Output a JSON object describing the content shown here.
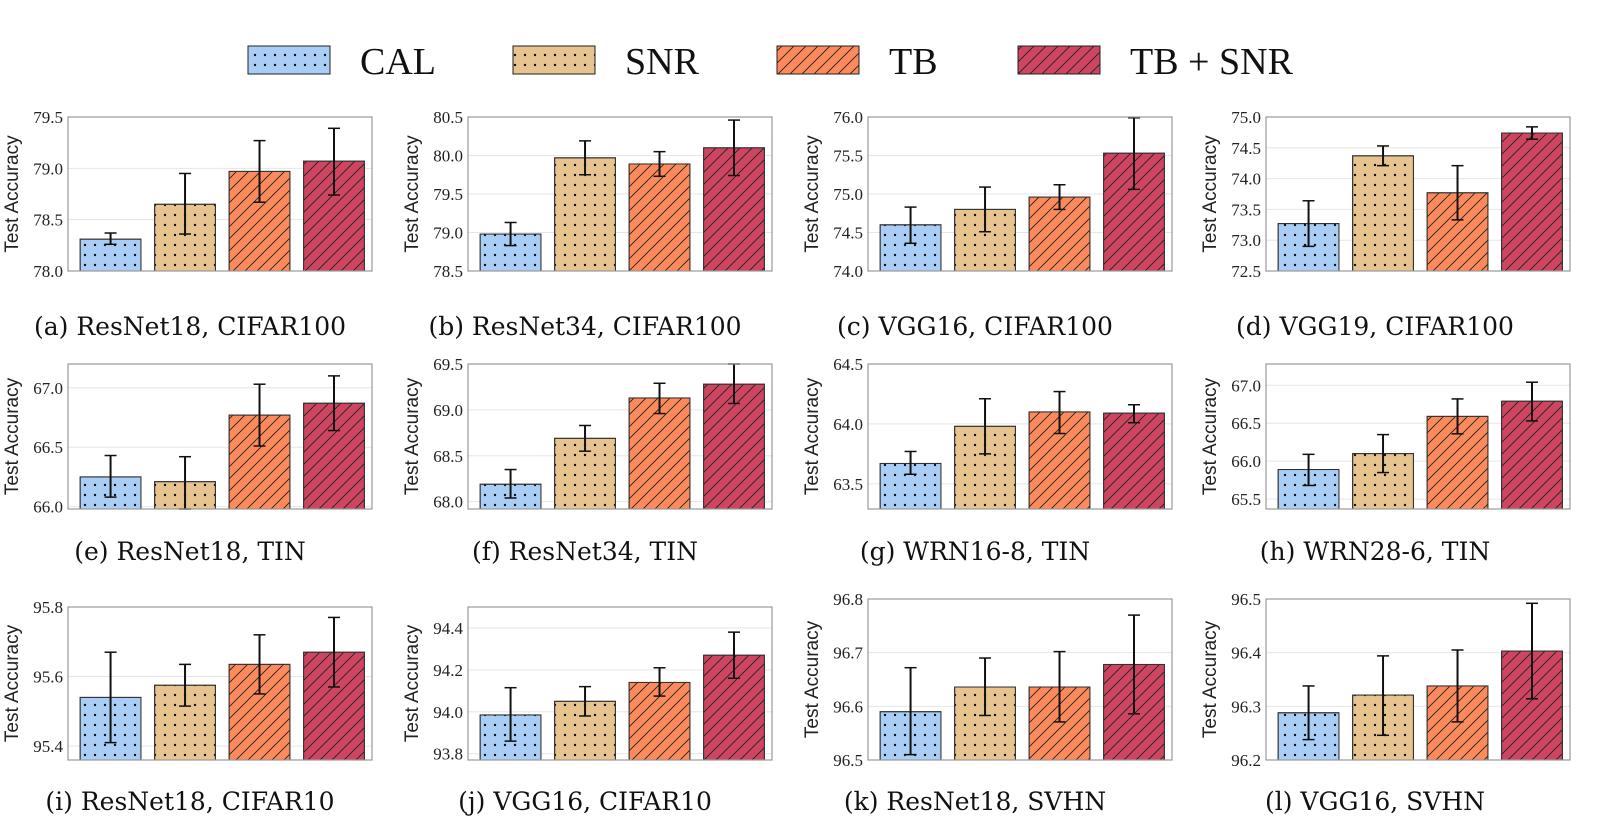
{
  "chart_data": {
    "type": "bar",
    "legend": {
      "placement": "top",
      "entries": [
        "CAL",
        "SNR",
        "TB",
        "TB + SNR"
      ]
    },
    "series_styles": [
      {
        "name": "CAL",
        "color": "#a9cdf4",
        "pattern": "dots"
      },
      {
        "name": "SNR",
        "color": "#e6c38f",
        "pattern": "dots"
      },
      {
        "name": "TB",
        "color": "#fc8a5b",
        "pattern": "hatch"
      },
      {
        "name": "TB + SNR",
        "color": "#cd4560",
        "pattern": "hatch"
      }
    ],
    "grid": true,
    "panels": [
      {
        "caption": "(a) ResNet18, CIFAR100",
        "ylabel": "Test Accuracy",
        "ylim": [
          78.0,
          79.5
        ],
        "yticks": [
          "78.0",
          "78.5",
          "79.0",
          "79.5"
        ],
        "values": [
          78.31,
          78.65,
          78.97,
          79.07
        ],
        "err_low": [
          78.26,
          78.36,
          78.67,
          78.74
        ],
        "err_high": [
          78.37,
          78.95,
          79.27,
          79.39
        ]
      },
      {
        "caption": "(b) ResNet34, CIFAR100",
        "ylabel": "Test Accuracy",
        "ylim": [
          78.5,
          80.5
        ],
        "yticks": [
          "78.5",
          "79.0",
          "79.5",
          "80.0",
          "80.5"
        ],
        "values": [
          78.98,
          79.97,
          79.89,
          80.1
        ],
        "err_low": [
          78.83,
          79.75,
          79.73,
          79.74
        ],
        "err_high": [
          79.13,
          80.19,
          80.05,
          80.46
        ]
      },
      {
        "caption": "(c) VGG16, CIFAR100",
        "ylabel": "Test Accuracy",
        "ylim": [
          74.0,
          76.0
        ],
        "yticks": [
          "74.0",
          "74.5",
          "75.0",
          "75.5",
          "76.0"
        ],
        "values": [
          74.6,
          74.8,
          74.96,
          75.53
        ],
        "err_low": [
          74.36,
          74.51,
          74.8,
          75.06
        ],
        "err_high": [
          74.83,
          75.09,
          75.12,
          75.99
        ]
      },
      {
        "caption": "(d) VGG19, CIFAR100",
        "ylabel": "Test Accuracy",
        "ylim": [
          72.5,
          75.0
        ],
        "yticks": [
          "72.5",
          "73.0",
          "73.5",
          "74.0",
          "74.5",
          "75.0"
        ],
        "values": [
          73.27,
          74.37,
          73.77,
          74.74
        ],
        "err_low": [
          72.9,
          74.21,
          73.33,
          74.64
        ],
        "err_high": [
          73.64,
          74.53,
          74.21,
          74.84
        ]
      },
      {
        "caption": "(e) ResNet18, TIN",
        "ylabel": "Test Accuracy",
        "ylim": [
          65.98,
          67.2
        ],
        "yticks": [
          "66.0",
          "66.5",
          "67.0"
        ],
        "values": [
          66.25,
          66.21,
          66.77,
          66.87
        ],
        "err_low": [
          66.08,
          65.98,
          66.51,
          66.64
        ],
        "err_high": [
          66.43,
          66.42,
          67.03,
          67.1
        ]
      },
      {
        "caption": "(f) ResNet34, TIN",
        "ylabel": "Test Accuracy",
        "ylim": [
          67.92,
          69.5
        ],
        "yticks": [
          "68.0",
          "68.5",
          "69.0",
          "69.5"
        ],
        "values": [
          68.19,
          68.69,
          69.13,
          69.28
        ],
        "err_low": [
          68.04,
          68.55,
          68.96,
          69.07
        ],
        "err_high": [
          68.35,
          68.83,
          69.29,
          69.5
        ]
      },
      {
        "caption": "(g) WRN16-8, TIN",
        "ylabel": "Test Accuracy",
        "ylim": [
          63.29,
          64.5
        ],
        "yticks": [
          "63.5",
          "64.0",
          "64.5"
        ],
        "values": [
          63.67,
          63.98,
          64.1,
          64.09
        ],
        "err_low": [
          63.58,
          63.75,
          63.92,
          64.01
        ],
        "err_high": [
          63.77,
          64.21,
          64.27,
          64.16
        ]
      },
      {
        "caption": "(h) WRN28-6, TIN",
        "ylabel": "Test Accuracy",
        "ylim": [
          65.37,
          67.28
        ],
        "yticks": [
          "65.5",
          "66.0",
          "66.5",
          "67.0"
        ],
        "values": [
          65.89,
          66.1,
          66.59,
          66.79
        ],
        "err_low": [
          65.68,
          65.85,
          66.36,
          66.53
        ],
        "err_high": [
          66.09,
          66.35,
          66.82,
          67.04
        ]
      },
      {
        "caption": "(i) ResNet18, CIFAR10",
        "ylabel": "Test Accuracy",
        "ylim": [
          95.36,
          95.8
        ],
        "yticks": [
          "95.4",
          "95.6",
          "95.8"
        ],
        "values": [
          95.54,
          95.575,
          95.635,
          95.67
        ],
        "err_low": [
          95.41,
          95.515,
          95.55,
          95.57
        ],
        "err_high": [
          95.67,
          95.635,
          95.72,
          95.77
        ]
      },
      {
        "caption": "(j) VGG16, CIFAR10",
        "ylabel": "Test Accuracy",
        "ylim": [
          93.77,
          94.5
        ],
        "yticks": [
          "93.8",
          "94.0",
          "94.2",
          "94.4"
        ],
        "values": [
          93.985,
          94.05,
          94.14,
          94.27
        ],
        "err_low": [
          93.86,
          93.98,
          94.075,
          94.16
        ],
        "err_high": [
          94.115,
          94.12,
          94.21,
          94.38
        ]
      },
      {
        "caption": "(k) ResNet18, SVHN",
        "ylabel": "Test Accuracy",
        "ylim": [
          96.5,
          96.8
        ],
        "yticks": [
          "96.5",
          "96.6",
          "96.7",
          "96.8"
        ],
        "values": [
          96.59,
          96.636,
          96.636,
          96.678
        ],
        "err_low": [
          96.51,
          96.583,
          96.571,
          96.586
        ],
        "err_high": [
          96.672,
          96.69,
          96.702,
          96.77
        ]
      },
      {
        "caption": "(l) VGG16, SVHN",
        "ylabel": "Test Accuracy",
        "ylim": [
          96.2,
          96.5
        ],
        "yticks": [
          "96.2",
          "96.3",
          "96.4",
          "96.5"
        ],
        "values": [
          96.288,
          96.321,
          96.338,
          96.403
        ],
        "err_low": [
          96.238,
          96.246,
          96.271,
          96.314
        ],
        "err_high": [
          96.338,
          96.394,
          96.405,
          96.492
        ]
      }
    ]
  }
}
